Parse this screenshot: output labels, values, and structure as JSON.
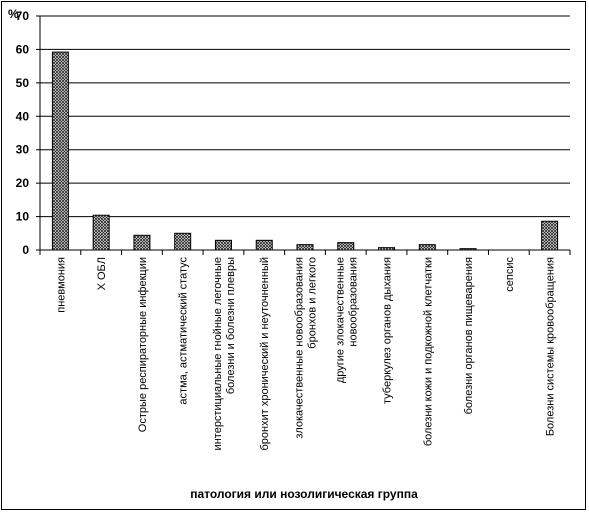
{
  "chart_data": {
    "type": "bar",
    "ylabel": "%",
    "xlabel": "патология или нозолигическая группа",
    "ylim": [
      0,
      70
    ],
    "yticks": [
      0,
      10,
      20,
      30,
      40,
      50,
      60,
      70
    ],
    "grid": true,
    "bar_pattern": "crosshatch",
    "categories": [
      [
        "пневмония"
      ],
      [
        "Х ОБЛ"
      ],
      [
        "Острые респираторные инфекции"
      ],
      [
        "астма, астматический статус"
      ],
      [
        "интерстициальные гнойные легочные",
        "болезни и болезни плевры"
      ],
      [
        "бронхит хронический и неуточненный"
      ],
      [
        "злокачественные новообразования",
        "бронхов и легкого"
      ],
      [
        "другие злокачественные",
        "новообразования"
      ],
      [
        "туберкулез органов дыхания"
      ],
      [
        "болезни кожи и подкожной клетчатки"
      ],
      [
        "болезни органов пищеварения"
      ],
      [
        "сепсис"
      ],
      [
        "Болезни системы кровообращения"
      ]
    ],
    "values": [
      59.2,
      10.4,
      4.4,
      5.0,
      2.9,
      2.9,
      1.6,
      2.2,
      0.7,
      1.6,
      0.4,
      0,
      8.6
    ]
  }
}
